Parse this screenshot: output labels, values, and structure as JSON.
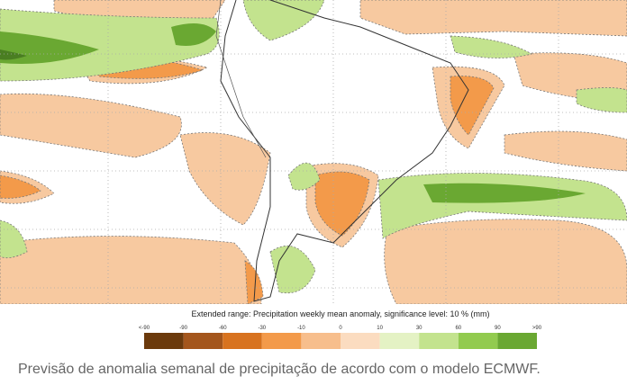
{
  "legend": {
    "title": "Extended range: Precipitation weekly mean anomaly, significance level: 10 % (mm)",
    "labels": [
      "<-90",
      "-90",
      "-60",
      "-30",
      "-10",
      "0",
      "10",
      "30",
      "60",
      "90",
      ">90"
    ],
    "colors": [
      "#6b3a0c",
      "#a4561c",
      "#d8731f",
      "#f39a4a",
      "#f7be8c",
      "#fbdcc0",
      "#e4f2c4",
      "#c3e38e",
      "#92cb4f",
      "#6aa832",
      "#4a7e22"
    ]
  },
  "caption": "Previsão de anomalia semanal de precipitação de acordo com o modelo ECMWF."
}
